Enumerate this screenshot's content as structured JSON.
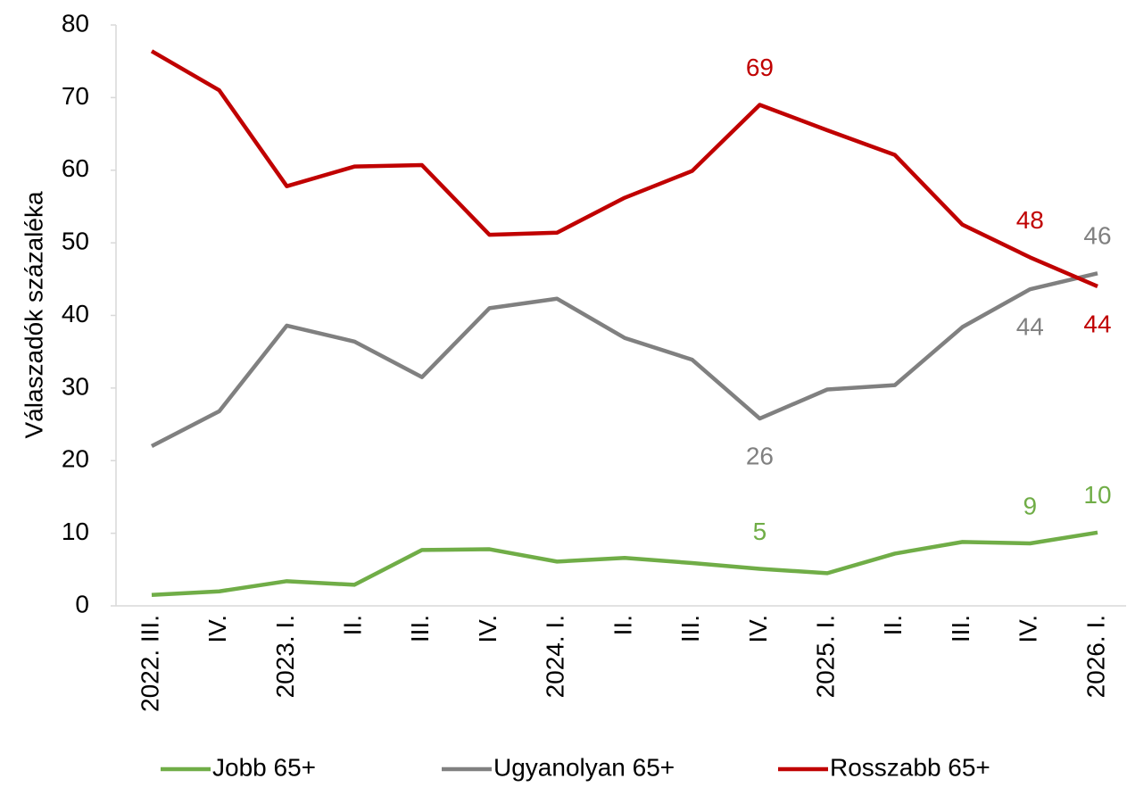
{
  "chart_data": {
    "type": "line",
    "y_label": "Válaszadók százaléka",
    "categories": [
      "2022. III.",
      "IV.",
      "2023. I.",
      "II.",
      "III.",
      "IV.",
      "2024. I.",
      "II.",
      "III.",
      "IV.",
      "2025. I.",
      "II.",
      "III.",
      "IV.",
      "2026. I."
    ],
    "series": [
      {
        "name": "Jobb 65+",
        "color": "#70ad47",
        "values": [
          1.5,
          2,
          3.4,
          2.9,
          7.7,
          7.8,
          6.1,
          6.6,
          5.9,
          5.1,
          4.5,
          7.2,
          8.8,
          8.6,
          10.1
        ],
        "value_labels": [
          null,
          null,
          null,
          null,
          null,
          null,
          null,
          null,
          null,
          "5",
          null,
          null,
          null,
          "9",
          "10"
        ]
      },
      {
        "name": "Ugyanolyan 65+",
        "color": "#808080",
        "values": [
          22,
          26.8,
          38.6,
          36.4,
          31.5,
          41,
          42.3,
          36.9,
          33.9,
          25.8,
          29.8,
          30.4,
          38.4,
          43.6,
          45.8
        ],
        "value_labels": [
          null,
          null,
          null,
          null,
          null,
          null,
          null,
          null,
          null,
          "26",
          null,
          null,
          null,
          "44",
          "46"
        ]
      },
      {
        "name": "Rosszabb 65+",
        "color": "#c00000",
        "values": [
          76.4,
          71,
          57.8,
          60.5,
          60.7,
          51.1,
          51.4,
          56.2,
          59.9,
          69,
          65.5,
          62.1,
          52.5,
          48,
          44
        ],
        "value_labels": [
          null,
          null,
          null,
          null,
          null,
          null,
          null,
          null,
          null,
          "69",
          null,
          null,
          null,
          "48",
          "44"
        ]
      }
    ],
    "ylim": [
      0,
      80
    ],
    "yticks": [
      0,
      10,
      20,
      30,
      40,
      50,
      60,
      70,
      80
    ],
    "legend": "bottom"
  }
}
